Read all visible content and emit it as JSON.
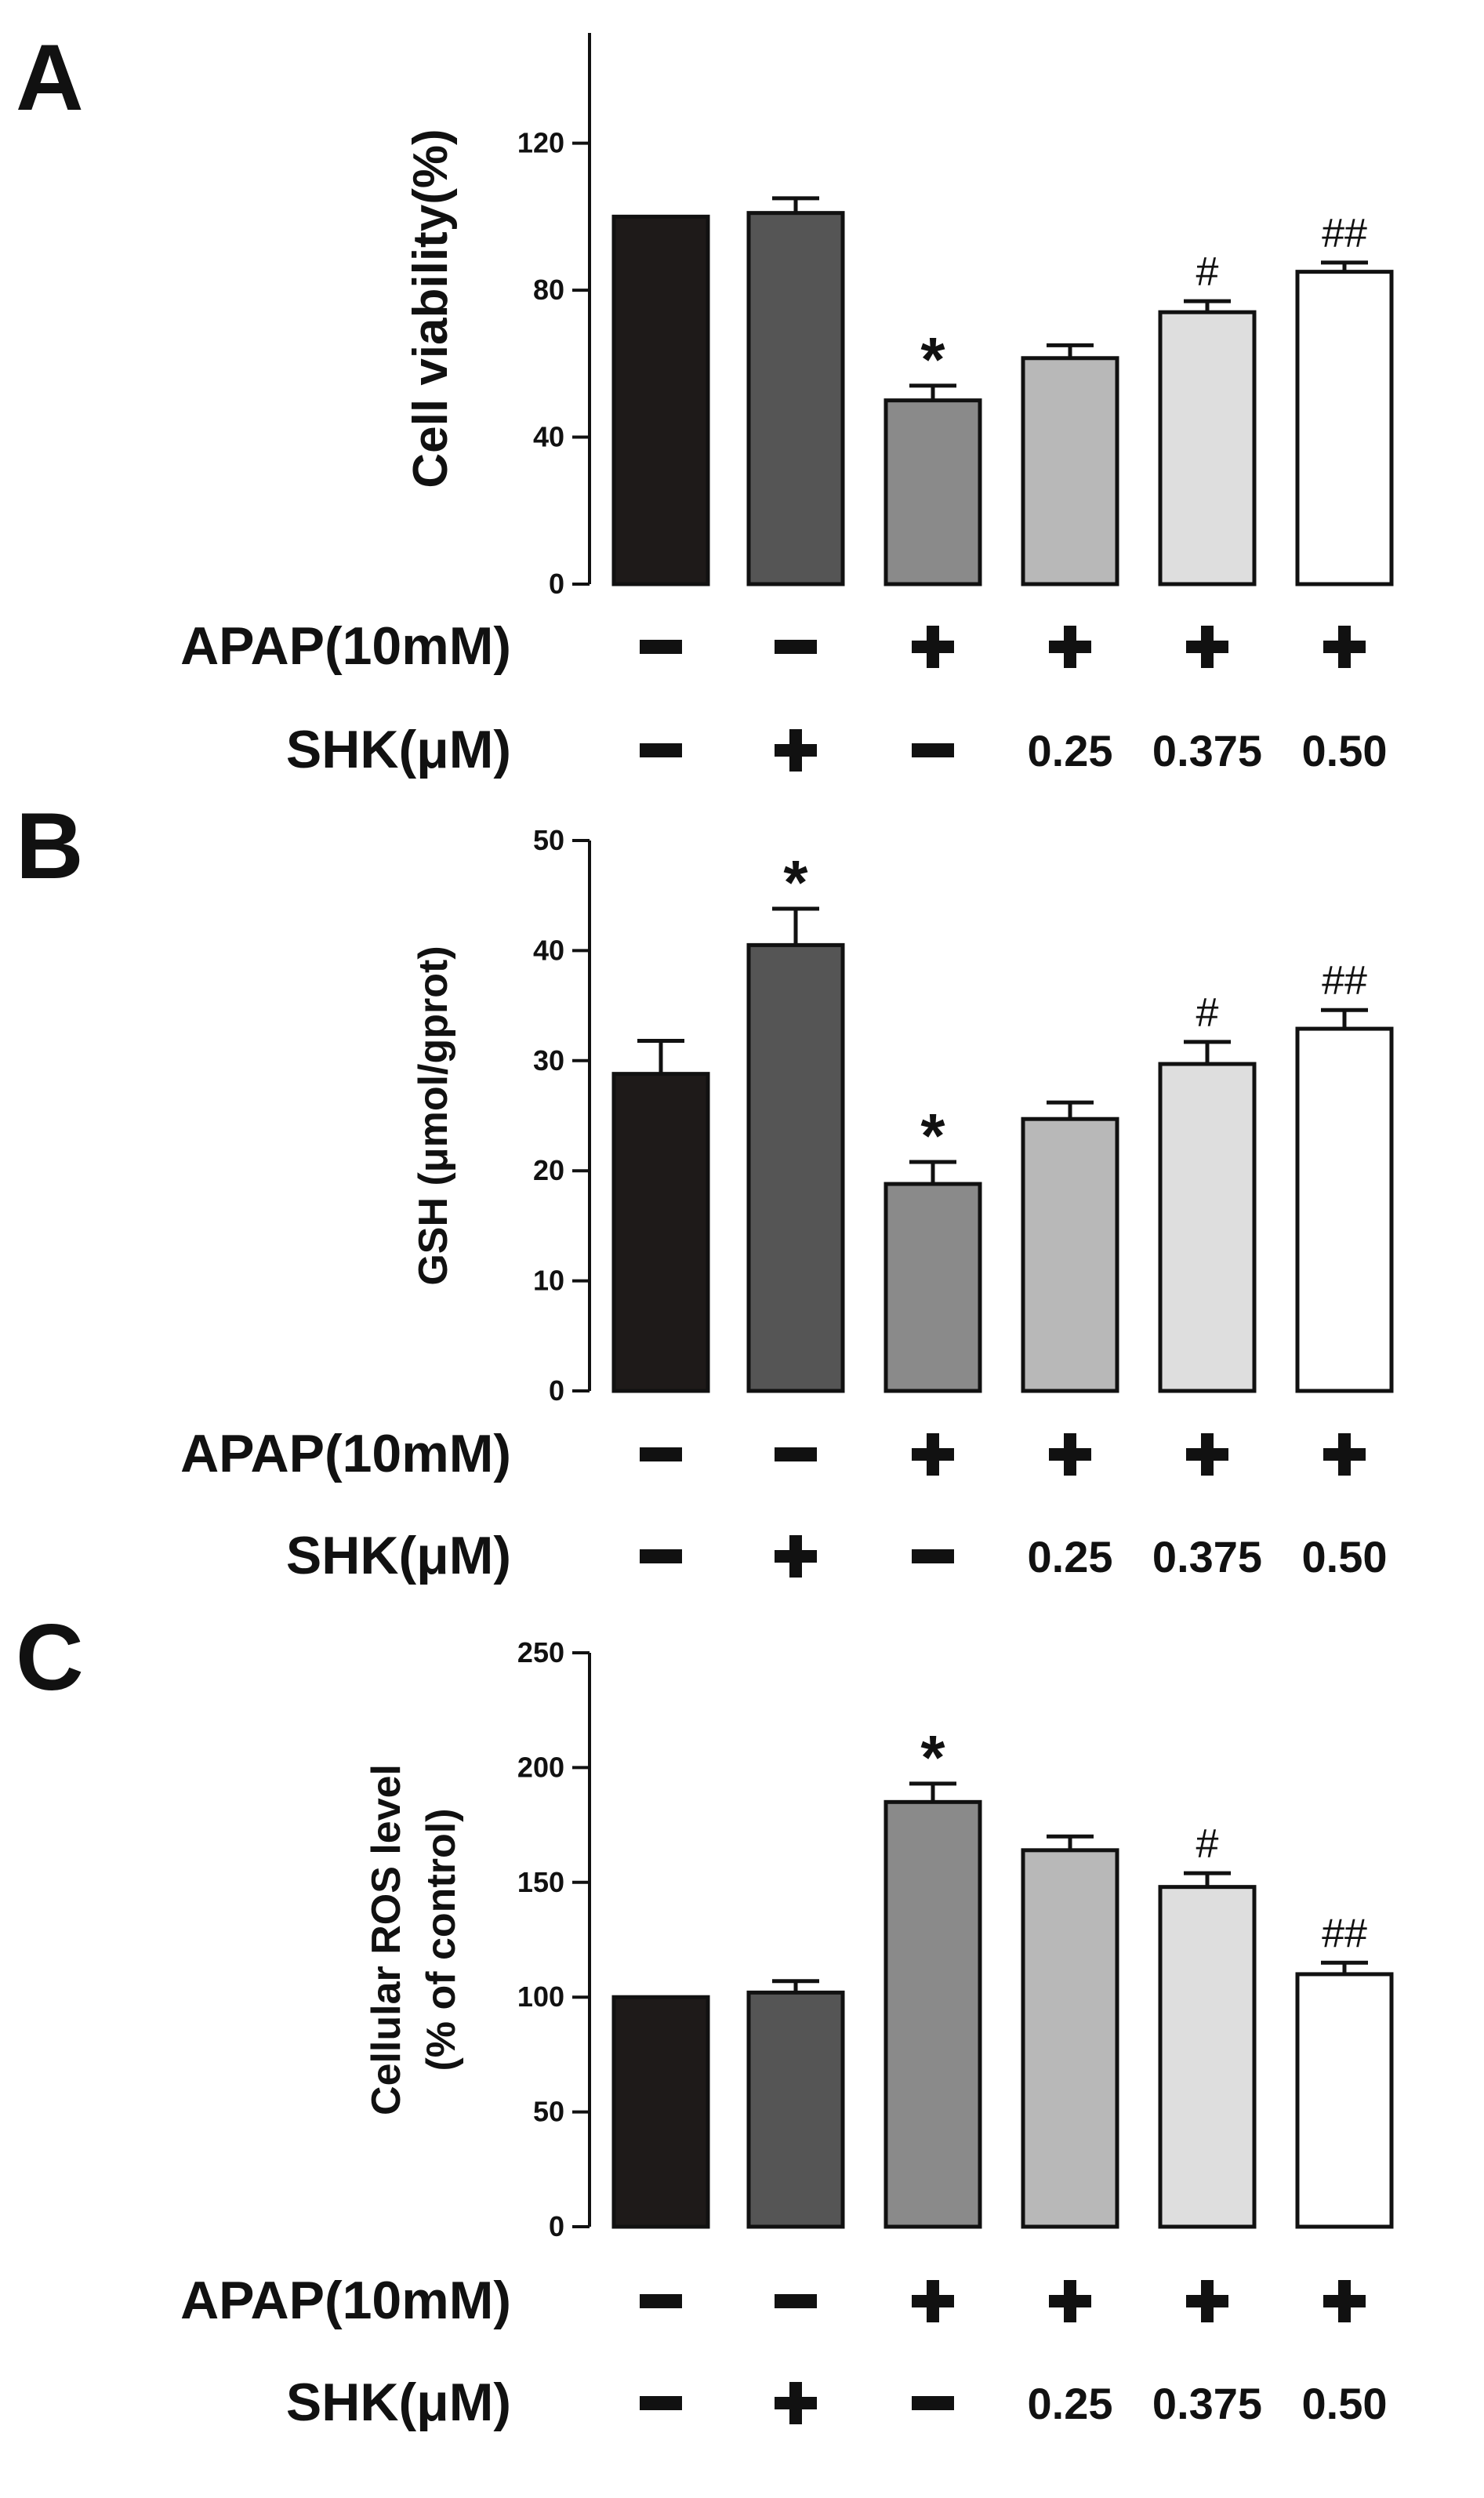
{
  "chart_data": [
    {
      "panel": "A",
      "type": "bar",
      "ylabel": "Cell viability(%)",
      "ylim": [
        0,
        150
      ],
      "yticks": [
        0,
        40,
        80,
        120
      ],
      "rows": [
        {
          "label": "APAP(10mM)",
          "values": [
            "-",
            "-",
            "+",
            "+",
            "+",
            "+"
          ]
        },
        {
          "label": "SHK(μM)",
          "values": [
            "-",
            "+",
            "-",
            "0.25",
            "0.375",
            "0.50"
          ]
        }
      ],
      "values": [
        100,
        101,
        50,
        61.5,
        74,
        85
      ],
      "errors": [
        0,
        4,
        4,
        3.5,
        3,
        2.5
      ],
      "annotations": [
        "",
        "",
        "*",
        "",
        "#",
        "##"
      ],
      "colors": [
        "#1e1a19",
        "#555555",
        "#8a8a8a",
        "#b8b8b8",
        "#dedede",
        "#ffffff"
      ]
    },
    {
      "panel": "B",
      "type": "bar",
      "ylabel": "GSH (μmol/gprot)",
      "ylim": [
        0,
        50
      ],
      "yticks": [
        0,
        10,
        20,
        30,
        40,
        50
      ],
      "rows": [
        {
          "label": "APAP(10mM)",
          "values": [
            "-",
            "-",
            "+",
            "+",
            "+",
            "+"
          ]
        },
        {
          "label": "SHK(μM)",
          "values": [
            "-",
            "+",
            "-",
            "0.25",
            "0.375",
            "0.50"
          ]
        }
      ],
      "values": [
        28.8,
        40.5,
        18.8,
        24.7,
        29.7,
        32.9
      ],
      "errors": [
        3,
        3.3,
        2,
        1.5,
        2,
        1.7
      ],
      "annotations": [
        "",
        "*",
        "*",
        "",
        "#",
        "##"
      ],
      "colors": [
        "#1e1a19",
        "#555555",
        "#8a8a8a",
        "#b8b8b8",
        "#dedede",
        "#ffffff"
      ]
    },
    {
      "panel": "C",
      "type": "bar",
      "ylabel": "Cellular ROS level\n(% of control)",
      "ylim": [
        0,
        250
      ],
      "yticks": [
        0,
        50,
        100,
        150,
        200,
        250
      ],
      "rows": [
        {
          "label": "APAP(10mM)",
          "values": [
            "-",
            "-",
            "+",
            "+",
            "+",
            "+"
          ]
        },
        {
          "label": "SHK(μM)",
          "values": [
            "-",
            "+",
            "-",
            "0.25",
            "0.375",
            "0.50"
          ]
        }
      ],
      "values": [
        100,
        102,
        185,
        164,
        148,
        110
      ],
      "errors": [
        0,
        5,
        8,
        6,
        6,
        5
      ],
      "annotations": [
        "",
        "",
        "*",
        "",
        "#",
        "##"
      ],
      "colors": [
        "#1e1a19",
        "#555555",
        "#8a8a8a",
        "#b8b8b8",
        "#dedede",
        "#ffffff"
      ]
    }
  ]
}
